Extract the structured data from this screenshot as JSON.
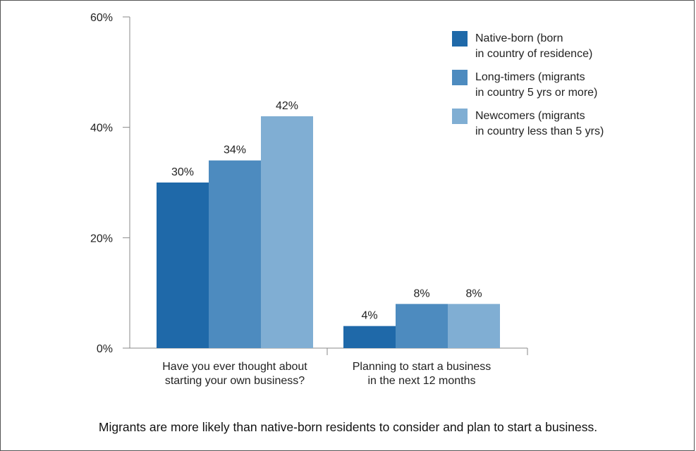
{
  "caption": "Migrants are more likely than native-born residents to consider and plan to start a business.",
  "chart_data": {
    "type": "bar",
    "categories": [
      [
        "Have you ever thought about",
        "starting your own business?"
      ],
      [
        "Planning to start a business",
        "in the next 12 months"
      ]
    ],
    "series": [
      {
        "name": [
          "Native-born (born",
          "in country of residence)"
        ],
        "values": [
          30,
          4
        ],
        "labels": [
          "30%",
          "4%"
        ],
        "color": "#1f69a9"
      },
      {
        "name": [
          "Long-timers (migrants",
          "in country 5 yrs or more)"
        ],
        "values": [
          34,
          8
        ],
        "labels": [
          "34%",
          "8%"
        ],
        "color": "#4d8bbf"
      },
      {
        "name": [
          "Newcomers (migrants",
          "in country less than 5 yrs)"
        ],
        "values": [
          42,
          8
        ],
        "labels": [
          "42%",
          "8%"
        ],
        "color": "#80aed3"
      }
    ],
    "yticks": [
      "0%",
      "20%",
      "40%",
      "60%"
    ],
    "ytick_values": [
      0,
      20,
      40,
      60
    ],
    "ylim": [
      0,
      60
    ],
    "legend_position": "top-right",
    "grid": false
  }
}
